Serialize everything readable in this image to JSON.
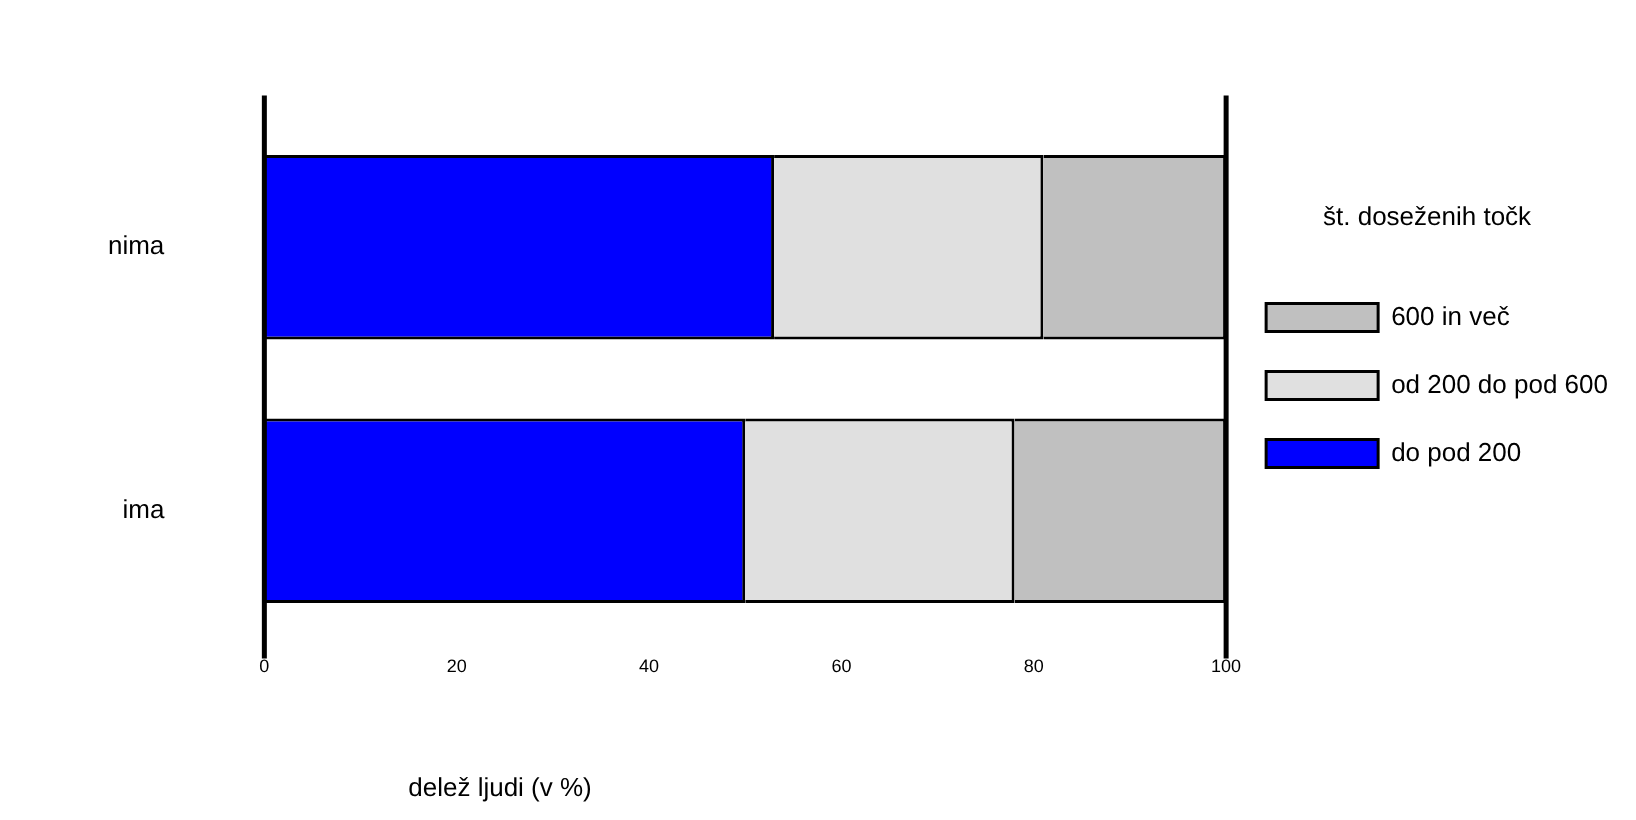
{
  "chart_data": {
    "type": "bar",
    "orientation": "horizontal",
    "stacked": true,
    "categories": [
      "nima",
      "ima"
    ],
    "series": [
      {
        "name": "do pod 200",
        "color": "#0000ff",
        "values": [
          53,
          50
        ]
      },
      {
        "name": "od 200 do pod 600",
        "color": "#e0e0e0",
        "values": [
          28,
          28
        ]
      },
      {
        "name": "600 in več",
        "color": "#c0c0c0",
        "values": [
          19,
          22
        ]
      }
    ],
    "xlim": [
      0,
      100
    ],
    "xticks": [
      0,
      20,
      40,
      60,
      80,
      100
    ],
    "xlabel": "delež ljudi (v %)",
    "legend": "right",
    "legend_title": "št. doseženih točk",
    "grid": false
  }
}
